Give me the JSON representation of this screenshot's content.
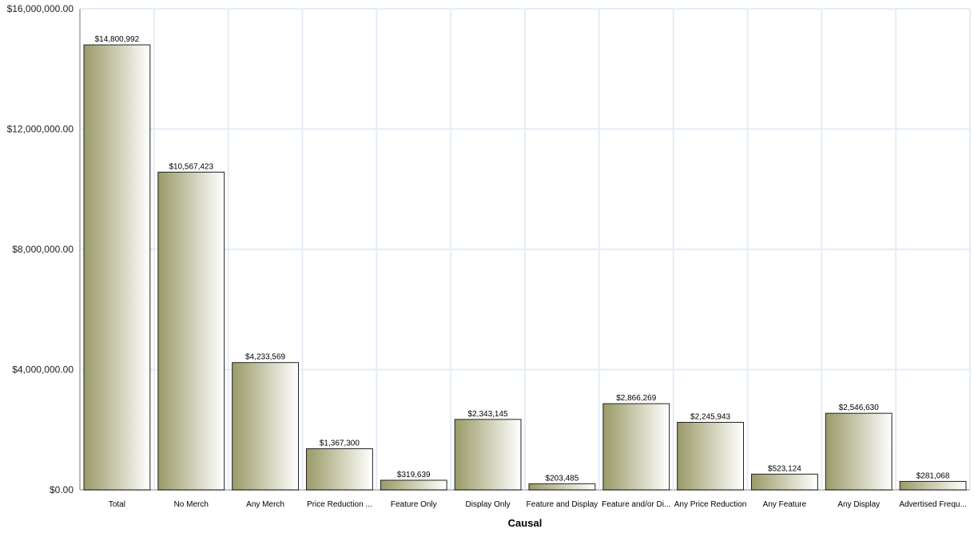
{
  "chart_data": {
    "type": "bar",
    "title": "",
    "xlabel": "Causal",
    "ylabel": "",
    "ylim": [
      0,
      16000000
    ],
    "yticks": [
      0,
      4000000,
      8000000,
      12000000,
      16000000
    ],
    "ytick_labels": [
      "$0.00",
      "$4,000,000.00",
      "$8,000,000.00",
      "$12,000,000.00",
      "$16,000,000.00"
    ],
    "categories": [
      "Total",
      "No Merch",
      "Any Merch",
      "Price Reduction ...",
      "Feature Only",
      "Display Only",
      "Feature and Display",
      "Feature and/or Di...",
      "Any Price Reduction",
      "Any Feature",
      "Any Display",
      "Advertised Frequ..."
    ],
    "values": [
      14800992,
      10567423,
      4233569,
      1367300,
      319639,
      2343145,
      203485,
      2866269,
      2245943,
      523124,
      2546630,
      281068
    ],
    "data_labels": [
      "$14,800,992",
      "$10,567,423",
      "$4,233,569",
      "$1,367,300",
      "$319,639",
      "$2,343,145",
      "$203,485",
      "$2,866,269",
      "$2,245,943",
      "$523,124",
      "$2,546,630",
      "$281,068"
    ],
    "grid": true,
    "colors": {
      "bar_dark": "#9a9a68",
      "bar_light": "#ffffff",
      "grid": "#e3edf7",
      "bar_stroke": "#222222"
    }
  }
}
